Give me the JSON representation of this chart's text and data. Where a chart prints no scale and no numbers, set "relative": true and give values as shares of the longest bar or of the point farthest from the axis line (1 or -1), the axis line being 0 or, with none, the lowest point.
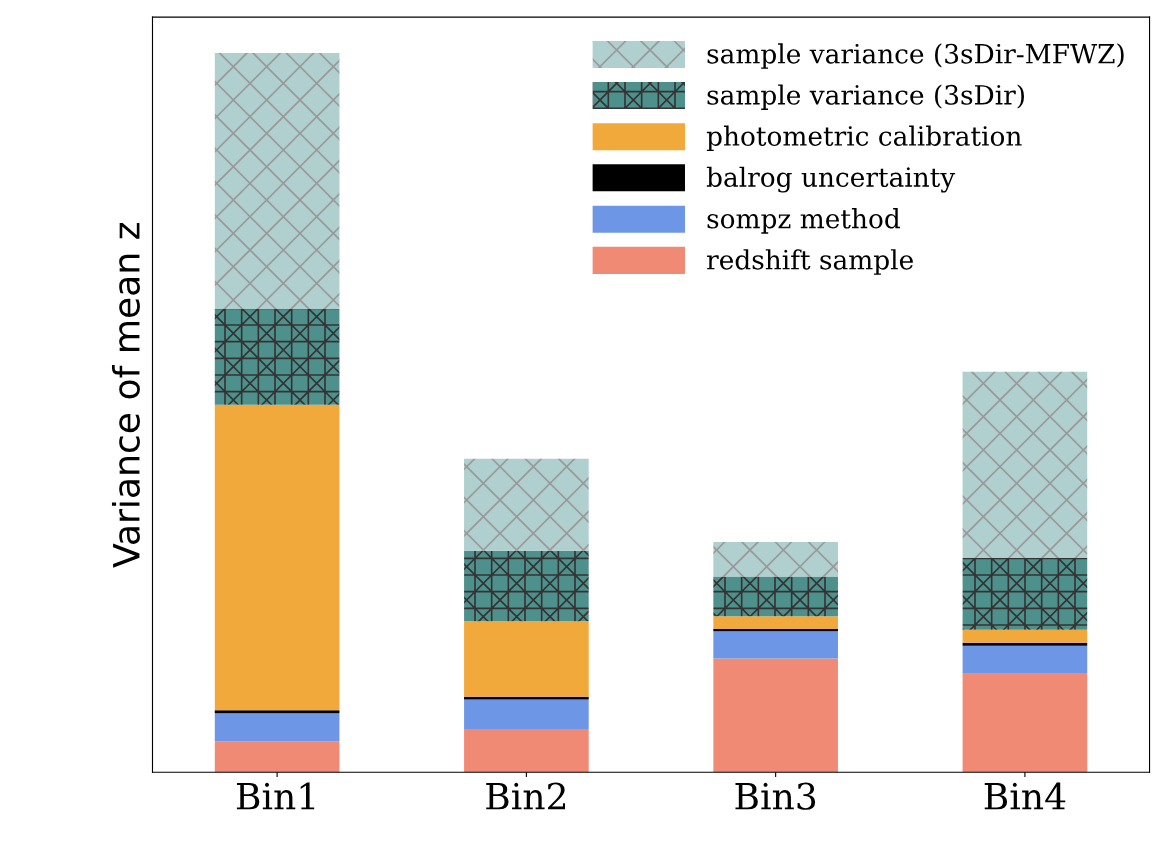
{
  "chart_data": {
    "type": "bar",
    "stacked": true,
    "relative": true,
    "ylabel": "Variance of mean z",
    "categories": [
      "Bin1",
      "Bin2",
      "Bin3",
      "Bin4"
    ],
    "legend": "top right",
    "grid": false,
    "series": [
      {
        "name": "redshift sample",
        "color": "#f08a75",
        "values": [
          0.043,
          0.06,
          0.158,
          0.137
        ]
      },
      {
        "name": "sompz method",
        "color": "#6d96e6",
        "values": [
          0.039,
          0.041,
          0.038,
          0.039
        ]
      },
      {
        "name": "balrog uncertainty",
        "color": "#000000",
        "values": [
          0.004,
          0.004,
          0.003,
          0.004
        ]
      },
      {
        "name": "photometric calibration",
        "color": "#f2a93b",
        "values": [
          0.425,
          0.105,
          0.018,
          0.018
        ]
      },
      {
        "name": "sample variance (3sDir)",
        "color": "#4e918c",
        "values": [
          0.133,
          0.098,
          0.055,
          0.1
        ]
      },
      {
        "name": "sample variance (3sDir-MFWZ)",
        "color": "#b0cfcf",
        "values": [
          0.356,
          0.128,
          0.048,
          0.259
        ]
      }
    ]
  }
}
